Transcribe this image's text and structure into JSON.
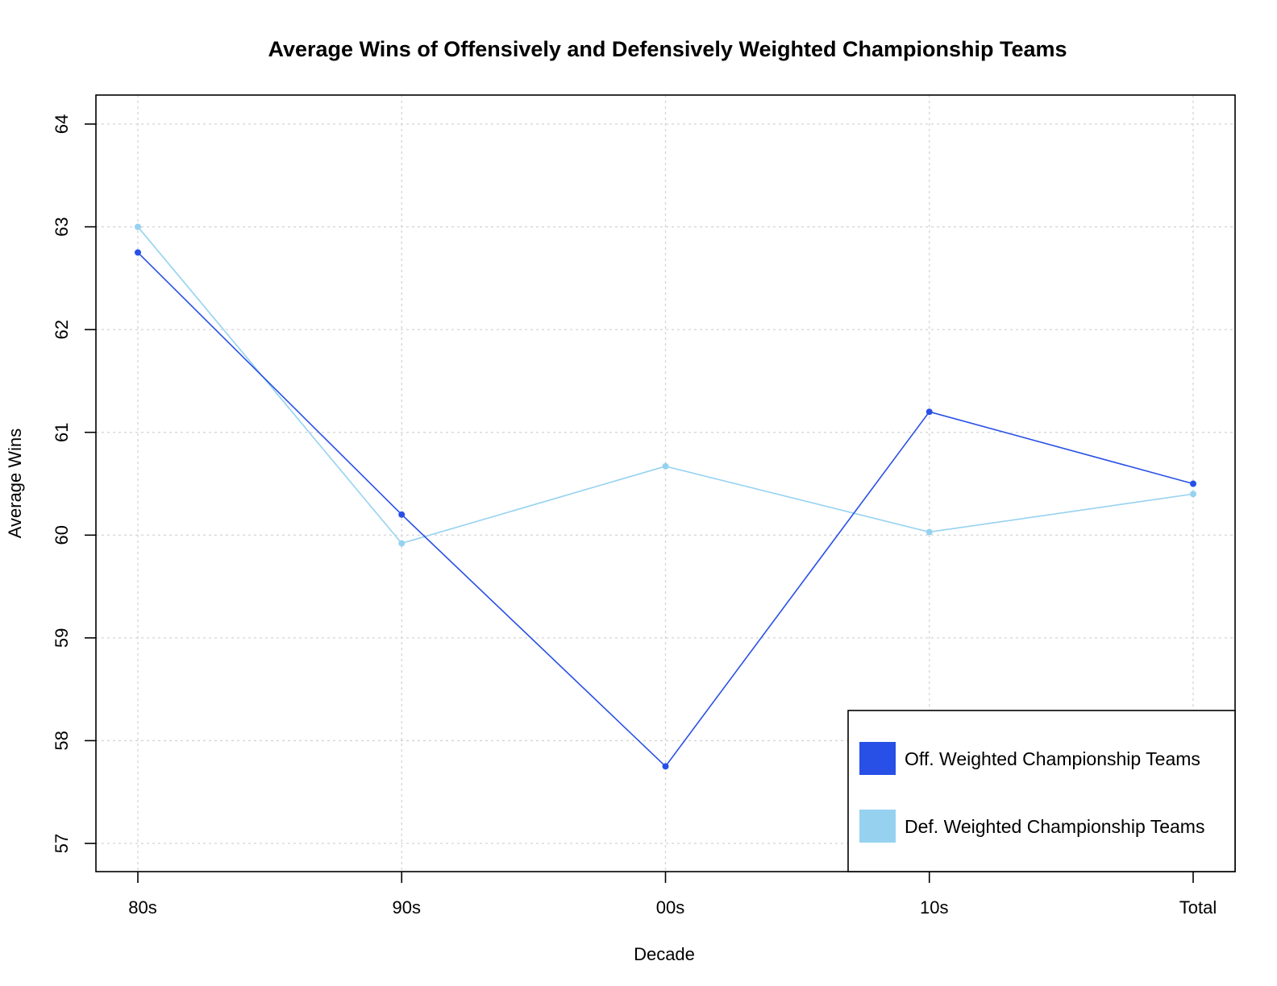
{
  "chart_data": {
    "type": "line",
    "title": "Average Wins of Offensively and Defensively Weighted Championship Teams",
    "xlabel": "Decade",
    "ylabel": "Average Wins",
    "categories": [
      "80s",
      "90s",
      "00s",
      "10s",
      "Total"
    ],
    "ylim": [
      57,
      64
    ],
    "yticks": [
      "57",
      "58",
      "59",
      "60",
      "61",
      "62",
      "63",
      "64"
    ],
    "grid": true,
    "legend_position": "bottom-right",
    "series": [
      {
        "name": "Off. Weighted Championship Teams",
        "color": "#2850e6",
        "values": [
          62.75,
          60.2,
          57.75,
          61.2,
          60.5
        ]
      },
      {
        "name": "Def. Weighted Championship Teams",
        "color": "#96d2f0",
        "values": [
          63.0,
          59.92,
          60.67,
          60.03,
          60.4
        ]
      }
    ]
  }
}
